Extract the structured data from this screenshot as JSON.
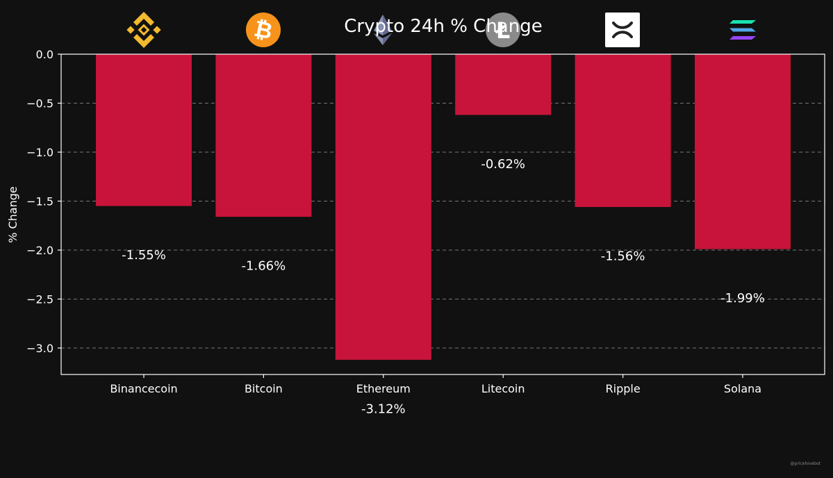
{
  "chart_data": {
    "type": "bar",
    "title": "Crypto 24h % Change",
    "xlabel": "",
    "ylabel": "% Change",
    "categories": [
      "Binancecoin",
      "Bitcoin",
      "Ethereum",
      "Litecoin",
      "Ripple",
      "Solana"
    ],
    "values": [
      -1.55,
      -1.66,
      -3.12,
      -0.62,
      -1.56,
      -1.99
    ],
    "value_labels": [
      "-1.55%",
      "-1.66%",
      "-3.12%",
      "-0.62%",
      "-1.56%",
      "-1.99%"
    ],
    "yticks": [
      0.0,
      -0.5,
      -1.0,
      -1.5,
      -2.0,
      -2.5,
      -3.0
    ],
    "ytick_labels": [
      "0.0",
      "−0.5",
      "−1.0",
      "−1.5",
      "−2.0",
      "−2.5",
      "−3.0"
    ],
    "ylim": [
      -3.27,
      0
    ],
    "grid": "horizontal dashed",
    "icons": [
      "binance-icon",
      "bitcoin-icon",
      "ethereum-icon",
      "litecoin-icon",
      "ripple-icon",
      "solana-icon"
    ]
  },
  "colors": {
    "background": "#111111",
    "bar": "#c8143a",
    "text": "#ffffff",
    "grid": "#777777",
    "axis": "#ffffff",
    "watermark": "#888888"
  },
  "watermark": "@pricehivebot"
}
